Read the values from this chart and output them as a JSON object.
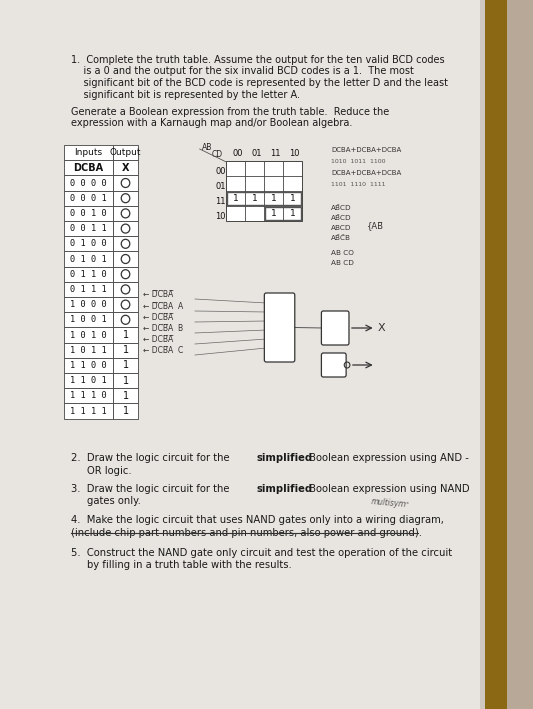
{
  "bg_color_top": "#c8bfb0",
  "bg_color": "#b8a898",
  "paper_color": "#e8e5e0",
  "q1_line1": "1.  Complete the truth table. Assume the output for the ten valid BCD codes",
  "q1_line2": "    is a 0 and the output for the six invalid BCD codes is a 1.  The most",
  "q1_line3": "    significant bit of the BCD code is represented by the letter D and the least",
  "q1_line4": "    significant bit is represented by the letter A.",
  "q1b_line1": "Generate a Boolean expression from the truth table.  Reduce the",
  "q1b_line2": "expression with a Karnaugh map and/or Boolean algebra.",
  "table_rows": [
    [
      "0 0 0 0",
      "0"
    ],
    [
      "0 0 0 1",
      "0"
    ],
    [
      "0 0 1 0",
      "0"
    ],
    [
      "0 0 1 1",
      "0"
    ],
    [
      "0 1 0 0",
      "0"
    ],
    [
      "0 1 0 1",
      "0"
    ],
    [
      "0 1 1 0",
      "0"
    ],
    [
      "0 1 1 1",
      "0"
    ],
    [
      "1 0 0 0",
      "0"
    ],
    [
      "1 0 0 1",
      "0"
    ],
    [
      "1 0 1 0",
      "1"
    ],
    [
      "1 0 1 1",
      "1"
    ],
    [
      "1 1 0 0",
      "1"
    ],
    [
      "1 1 0 1",
      "1"
    ],
    [
      "1 1 1 0",
      "1"
    ],
    [
      "1 1 1 1",
      "1"
    ]
  ],
  "q2_a": "2.  Draw the logic circuit for the ",
  "q2_bold": "simplified",
  "q2_b": " Boolean expression using AND -",
  "q2_c": "    OR logic.",
  "q3_a": "3.  Draw the logic circuit for the ",
  "q3_bold": "simplified",
  "q3_b": " Boolean expression using NAND",
  "q3_c": "    gates only.",
  "q4_a": "4.  Make the logic circuit that uses NAND gates only into a wiring diagram,",
  "q4_strike": "(include chip part numbers and pin numbers, also power and ground).",
  "q4_note": "multisym",
  "q5_a": "5.  Construct the NAND gate only circuit and test the operation of the circuit",
  "q5_b": "    by filling in a truth table with the results."
}
